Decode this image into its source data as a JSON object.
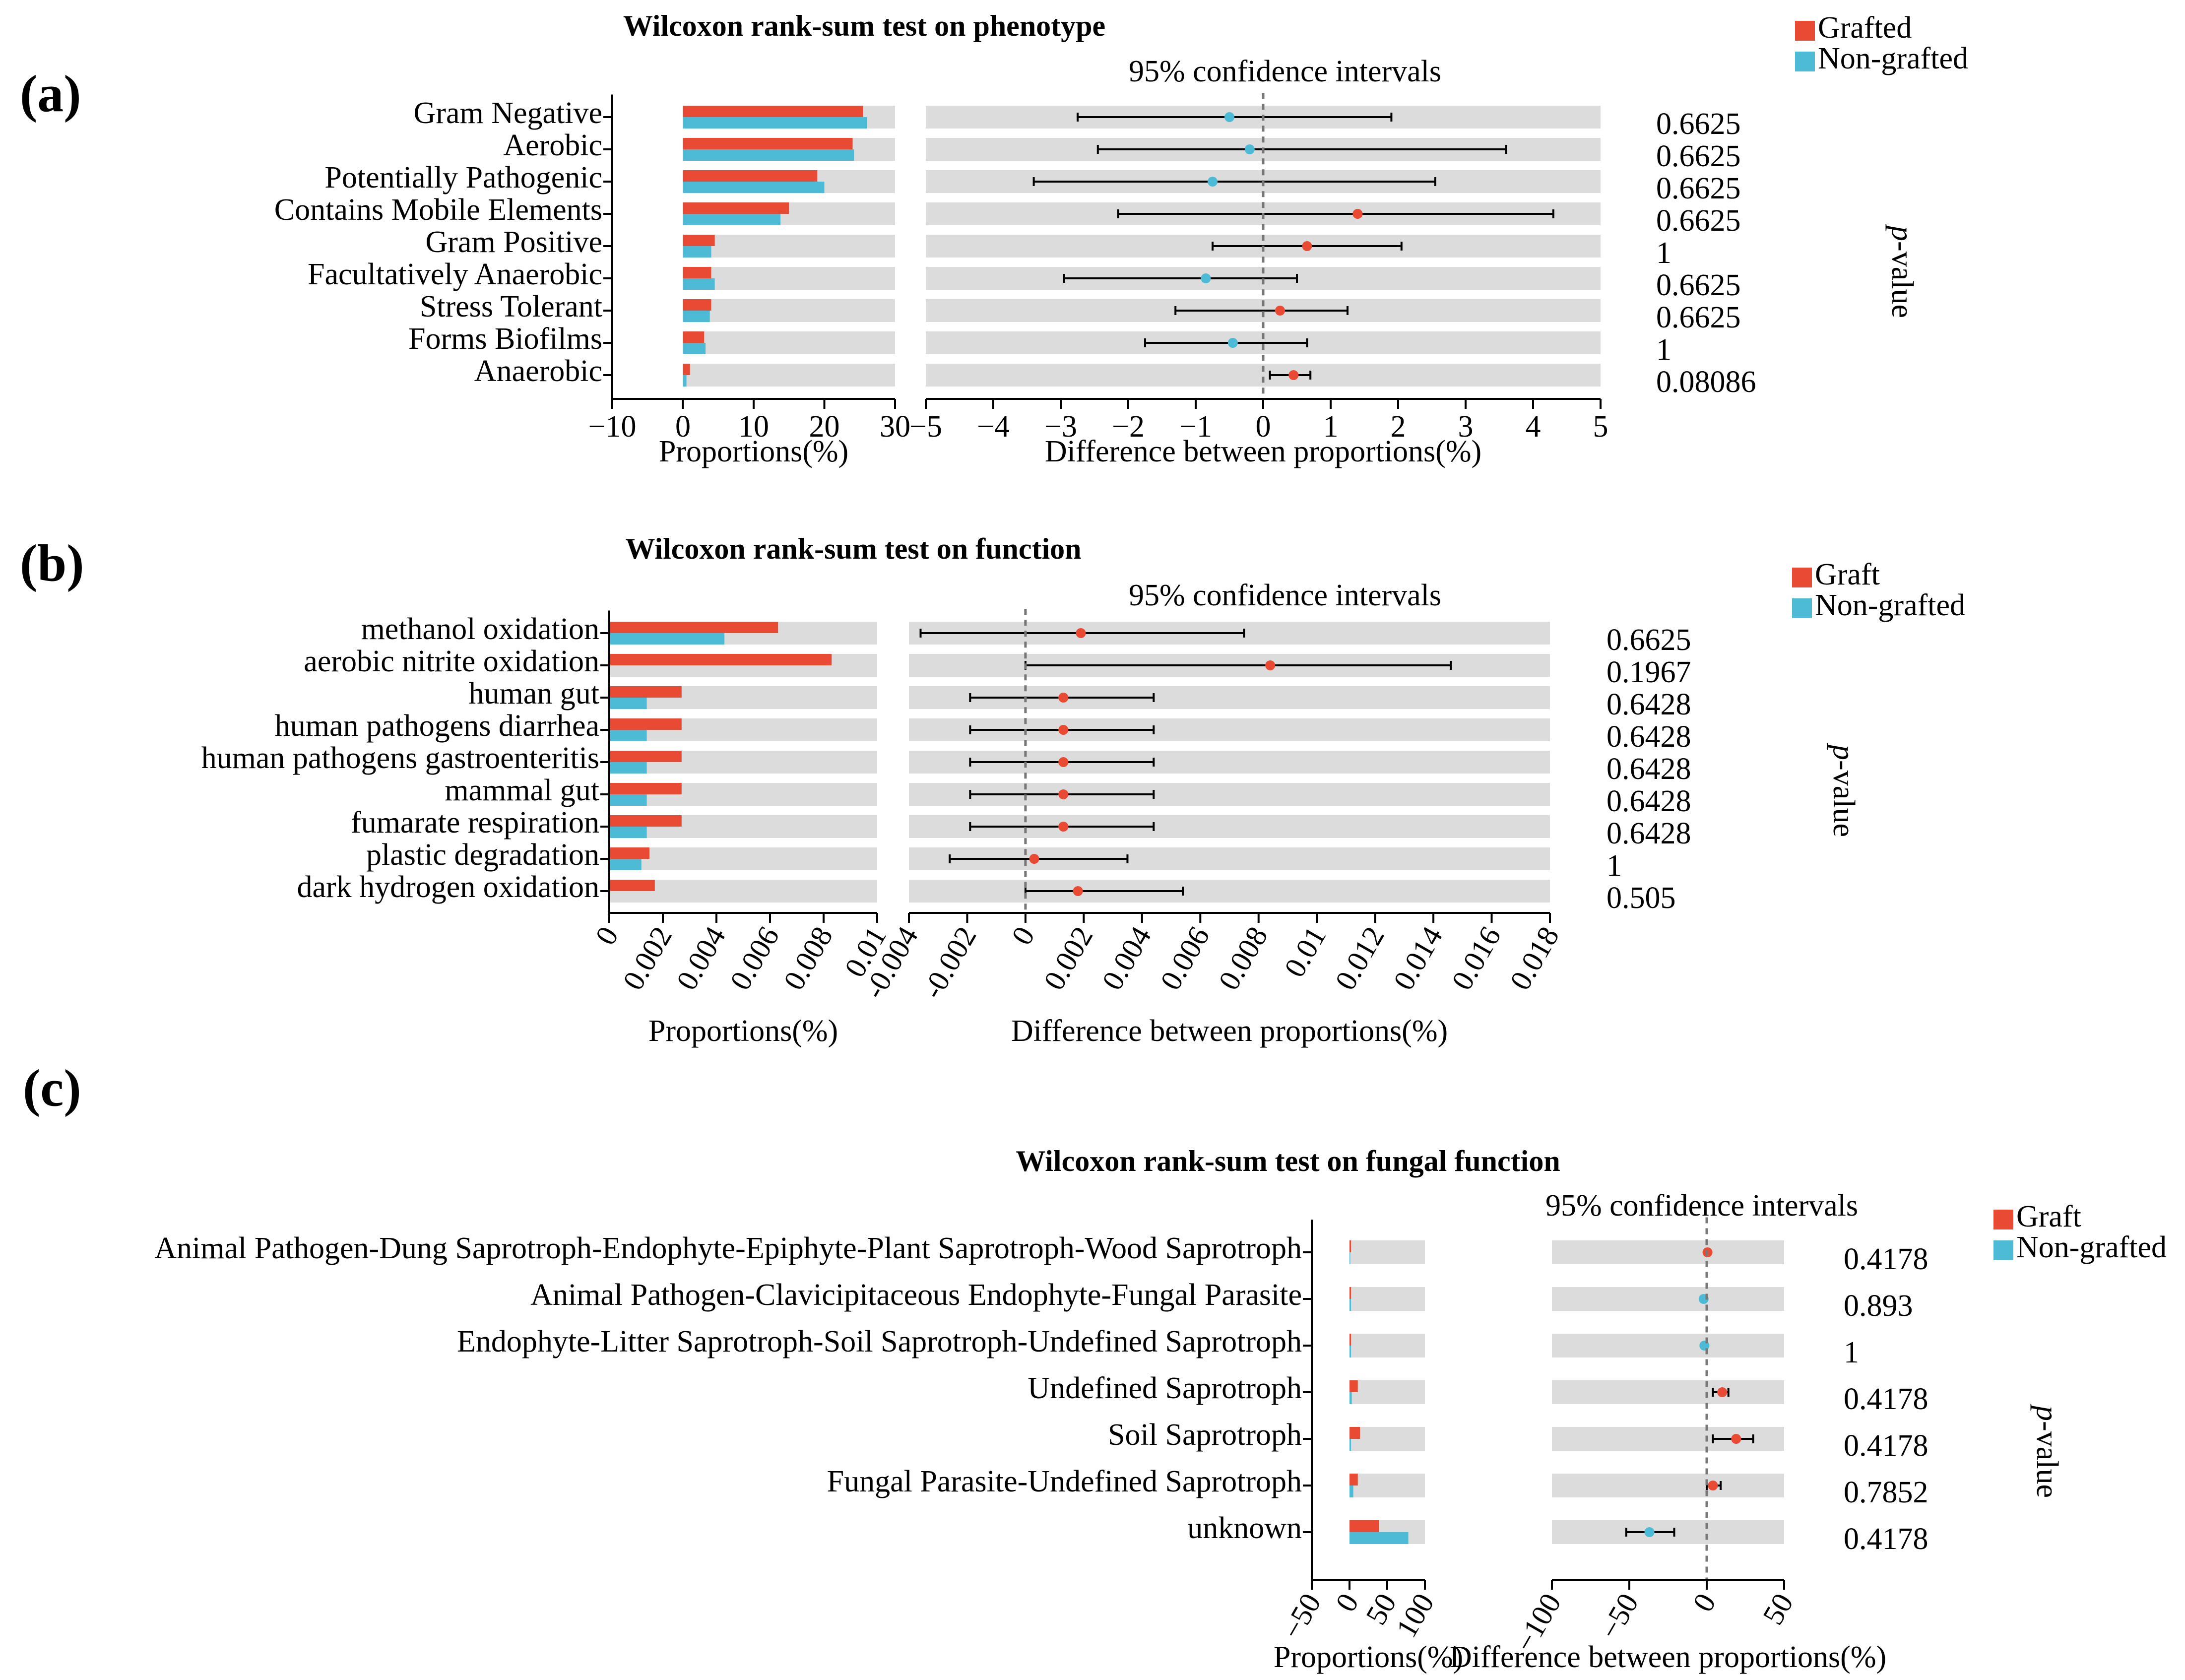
{
  "colors": {
    "grafted": "#E84A33",
    "non_grafted": "#4DBBD5",
    "row_bg": "#DCDCDC",
    "axis": "#000000",
    "zero_line": "#777777"
  },
  "chart_data": [
    {
      "type": "bar",
      "panel_label": "(a)",
      "title": "Wilcoxon rank-sum test on phenotype",
      "ci_title": "95% confidence intervals",
      "legend": [
        "Grafted",
        "Non-grafted"
      ],
      "pvalue_label": "p-value",
      "categories": [
        "Gram Negative",
        "Aerobic",
        "Potentially Pathogenic",
        "Contains Mobile Elements",
        "Gram Positive",
        "Facultatively Anaerobic",
        "Stress Tolerant",
        "Forms Biofilms",
        "Anaerobic"
      ],
      "series": [
        {
          "name": "Grafted",
          "values": [
            25.5,
            24.0,
            19.0,
            15.0,
            4.5,
            4.0,
            4.0,
            3.0,
            1.0
          ]
        },
        {
          "name": "Non-grafted",
          "values": [
            26.0,
            24.2,
            20.0,
            13.8,
            4.0,
            4.5,
            3.8,
            3.2,
            0.5
          ]
        }
      ],
      "prop_axis": {
        "label": "Proportions(%)",
        "ticks": [
          "−10",
          "0",
          "10",
          "20",
          "30"
        ],
        "range": [
          -10,
          30
        ]
      },
      "diff_axis": {
        "label": "Difference between proportions(%)",
        "ticks": [
          "−5",
          "−4",
          "−3",
          "−2",
          "−1",
          "0",
          "1",
          "2",
          "3",
          "4",
          "5"
        ],
        "range": [
          -5,
          5
        ]
      },
      "diff": [
        {
          "est": -0.5,
          "lo": -2.75,
          "hi": 1.9,
          "group": "Non-grafted"
        },
        {
          "est": -0.2,
          "lo": -2.45,
          "hi": 3.6,
          "group": "Non-grafted"
        },
        {
          "est": -0.75,
          "lo": -3.4,
          "hi": 2.55,
          "group": "Non-grafted"
        },
        {
          "est": 1.4,
          "lo": -2.15,
          "hi": 4.3,
          "group": "Grafted"
        },
        {
          "est": 0.65,
          "lo": -0.75,
          "hi": 2.05,
          "group": "Grafted"
        },
        {
          "est": -0.85,
          "lo": -2.95,
          "hi": 0.5,
          "group": "Non-grafted"
        },
        {
          "est": 0.25,
          "lo": -1.3,
          "hi": 1.25,
          "group": "Grafted"
        },
        {
          "est": -0.45,
          "lo": -1.75,
          "hi": 0.65,
          "group": "Non-grafted"
        },
        {
          "est": 0.45,
          "lo": 0.1,
          "hi": 0.7,
          "group": "Grafted"
        }
      ],
      "pvalues": [
        "0.6625",
        "0.6625",
        "0.6625",
        "0.6625",
        "1",
        "0.6625",
        "0.6625",
        "1",
        "0.08086"
      ]
    },
    {
      "type": "bar",
      "panel_label": "(b)",
      "title": "Wilcoxon rank-sum test on function",
      "ci_title": "95% confidence intervals",
      "legend": [
        "Graft",
        "Non-grafted"
      ],
      "pvalue_label": "p-value",
      "categories": [
        "methanol oxidation",
        "aerobic nitrite oxidation",
        "human gut",
        "human pathogens diarrhea",
        "human pathogens gastroenteritis",
        "mammal gut",
        "fumarate respiration",
        "plastic degradation",
        "dark hydrogen oxidation"
      ],
      "series": [
        {
          "name": "Graft",
          "values": [
            0.0063,
            0.0083,
            0.0027,
            0.0027,
            0.0027,
            0.0027,
            0.0027,
            0.0015,
            0.0017
          ]
        },
        {
          "name": "Non-grafted",
          "values": [
            0.0043,
            0.0,
            0.0014,
            0.0014,
            0.0014,
            0.0014,
            0.0014,
            0.0012,
            0.0
          ]
        }
      ],
      "prop_axis": {
        "label": "Proportions(%)",
        "ticks": [
          "0",
          "0.002",
          "0.004",
          "0.006",
          "0.008",
          "0.01"
        ],
        "range": [
          0,
          0.01
        ]
      },
      "diff_axis": {
        "label": "Difference between proportions(%)",
        "ticks": [
          "-0.004",
          "-0.002",
          "0",
          "0.002",
          "0.004",
          "0.006",
          "0.008",
          "0.01",
          "0.012",
          "0.014",
          "0.016",
          "0.018"
        ],
        "range": [
          -0.004,
          0.018
        ]
      },
      "diff": [
        {
          "est": 0.0019,
          "lo": -0.0036,
          "hi": 0.0075,
          "group": "Graft"
        },
        {
          "est": 0.0084,
          "lo": 0.0,
          "hi": 0.0146,
          "group": "Graft"
        },
        {
          "est": 0.0013,
          "lo": -0.0019,
          "hi": 0.0044,
          "group": "Graft"
        },
        {
          "est": 0.0013,
          "lo": -0.0019,
          "hi": 0.0044,
          "group": "Graft"
        },
        {
          "est": 0.0013,
          "lo": -0.0019,
          "hi": 0.0044,
          "group": "Graft"
        },
        {
          "est": 0.0013,
          "lo": -0.0019,
          "hi": 0.0044,
          "group": "Graft"
        },
        {
          "est": 0.0013,
          "lo": -0.0019,
          "hi": 0.0044,
          "group": "Graft"
        },
        {
          "est": 0.0003,
          "lo": -0.0026,
          "hi": 0.0035,
          "group": "Graft"
        },
        {
          "est": 0.0018,
          "lo": 0.0,
          "hi": 0.0054,
          "group": "Graft"
        }
      ],
      "pvalues": [
        "0.6625",
        "0.1967",
        "0.6428",
        "0.6428",
        "0.6428",
        "0.6428",
        "0.6428",
        "1",
        "0.505"
      ]
    },
    {
      "type": "bar",
      "panel_label": "(c)",
      "title": "Wilcoxon rank-sum test on fungal function",
      "ci_title": "95% confidence intervals",
      "legend": [
        "Graft",
        "Non-grafted"
      ],
      "pvalue_label": "p-value",
      "categories": [
        "Animal Pathogen-Dung Saprotroph-Endophyte-Epiphyte-Plant Saprotroph-Wood Saprotroph",
        "Animal Pathogen-Clavicipitaceous Endophyte-Fungal Parasite",
        "Endophyte-Litter Saprotroph-Soil Saprotroph-Undefined Saprotroph",
        "Undefined Saprotroph",
        "Soil Saprotroph",
        "Fungal Parasite-Undefined Saprotroph",
        "unknown"
      ],
      "series": [
        {
          "name": "Graft",
          "values": [
            2,
            2,
            2,
            11,
            14,
            11,
            39
          ]
        },
        {
          "name": "Non-grafted",
          "values": [
            1,
            2,
            2,
            3,
            2,
            5,
            78
          ]
        }
      ],
      "prop_axis": {
        "label": "Proportions(%)",
        "ticks": [
          "−50",
          "0",
          "50",
          "100"
        ],
        "range": [
          -50,
          100
        ]
      },
      "diff_axis": {
        "label": "Difference between proportions(%)",
        "ticks": [
          "−100",
          "−50",
          "0",
          "50"
        ],
        "range": [
          -100,
          50
        ]
      },
      "diff": [
        {
          "est": 0.5,
          "lo": 0.5,
          "hi": 0.5,
          "group": "Graft"
        },
        {
          "est": -2,
          "lo": -2,
          "hi": -2,
          "group": "Non-grafted"
        },
        {
          "est": -1.5,
          "lo": -1.5,
          "hi": -1.5,
          "group": "Non-grafted"
        },
        {
          "est": 10,
          "lo": 4,
          "hi": 14,
          "group": "Graft"
        },
        {
          "est": 19,
          "lo": 4,
          "hi": 30,
          "group": "Graft"
        },
        {
          "est": 4,
          "lo": 0,
          "hi": 9,
          "group": "Graft"
        },
        {
          "est": -37,
          "lo": -52,
          "hi": -21,
          "group": "Non-grafted"
        }
      ],
      "pvalues": [
        "0.4178",
        "0.893",
        "1",
        "0.4178",
        "0.4178",
        "0.7852",
        "0.4178"
      ]
    }
  ]
}
